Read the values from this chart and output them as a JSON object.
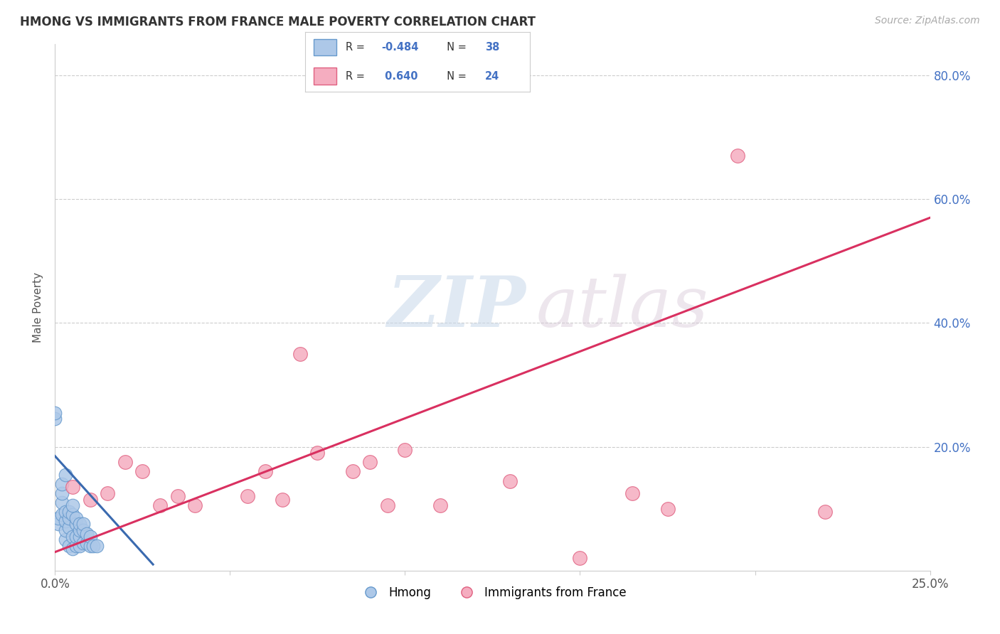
{
  "title": "HMONG VS IMMIGRANTS FROM FRANCE MALE POVERTY CORRELATION CHART",
  "source": "Source: ZipAtlas.com",
  "ylabel": "Male Poverty",
  "watermark_zip": "ZIP",
  "watermark_atlas": "atlas",
  "xlim": [
    0.0,
    0.25
  ],
  "ylim": [
    0.0,
    0.85
  ],
  "legend_r1": "R = -0.484",
  "legend_n1": "N = 38",
  "legend_r2": "R =  0.640",
  "legend_n2": "N = 24",
  "hmong_color": "#adc8e8",
  "france_color": "#f5adc0",
  "hmong_edge": "#6699cc",
  "france_edge": "#e06080",
  "trend_hmong_color": "#3a6aaf",
  "trend_france_color": "#d93060",
  "hmong_x": [
    0.0,
    0.0,
    0.001,
    0.001,
    0.002,
    0.002,
    0.002,
    0.002,
    0.003,
    0.003,
    0.003,
    0.003,
    0.003,
    0.004,
    0.004,
    0.004,
    0.004,
    0.005,
    0.005,
    0.005,
    0.005,
    0.006,
    0.006,
    0.006,
    0.006,
    0.007,
    0.007,
    0.007,
    0.007,
    0.008,
    0.008,
    0.008,
    0.009,
    0.009,
    0.01,
    0.01,
    0.011,
    0.012
  ],
  "hmong_y": [
    0.245,
    0.255,
    0.075,
    0.085,
    0.09,
    0.11,
    0.125,
    0.14,
    0.05,
    0.065,
    0.08,
    0.095,
    0.155,
    0.04,
    0.07,
    0.085,
    0.095,
    0.035,
    0.055,
    0.09,
    0.105,
    0.04,
    0.055,
    0.075,
    0.085,
    0.04,
    0.055,
    0.065,
    0.075,
    0.045,
    0.065,
    0.075,
    0.045,
    0.06,
    0.04,
    0.055,
    0.04,
    0.04
  ],
  "france_x": [
    0.005,
    0.01,
    0.015,
    0.02,
    0.025,
    0.03,
    0.035,
    0.04,
    0.055,
    0.06,
    0.065,
    0.07,
    0.075,
    0.085,
    0.09,
    0.095,
    0.1,
    0.11,
    0.13,
    0.15,
    0.165,
    0.175,
    0.195,
    0.22
  ],
  "france_y": [
    0.135,
    0.115,
    0.125,
    0.175,
    0.16,
    0.105,
    0.12,
    0.105,
    0.12,
    0.16,
    0.115,
    0.35,
    0.19,
    0.16,
    0.175,
    0.105,
    0.195,
    0.105,
    0.145,
    0.02,
    0.125,
    0.1,
    0.67,
    0.095
  ],
  "background_color": "#ffffff",
  "grid_color": "#cccccc"
}
